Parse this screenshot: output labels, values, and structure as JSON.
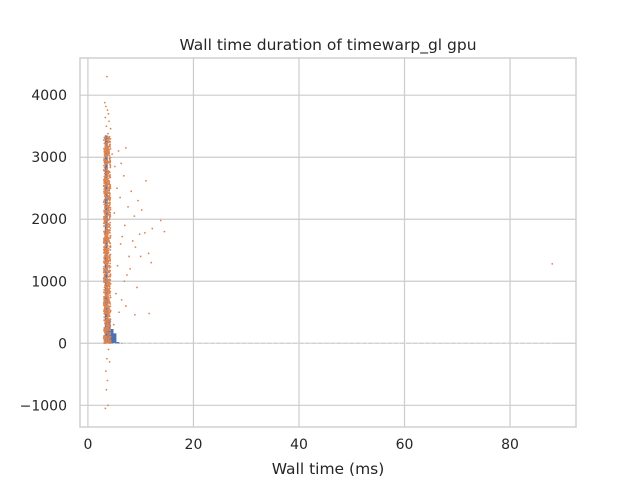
{
  "chart_data": {
    "type": "scatter",
    "title": "Wall time duration of timewarp_gl gpu",
    "xlabel": "Wall time (ms)",
    "ylabel": "",
    "xlim": [
      -1.5,
      92.5
    ],
    "ylim": [
      -1350,
      4600
    ],
    "xticks": [
      0,
      20,
      40,
      60,
      80
    ],
    "yticks": [
      -1000,
      0,
      1000,
      2000,
      3000,
      4000
    ],
    "xtick_labels": [
      "0",
      "20",
      "40",
      "60",
      "80"
    ],
    "ytick_labels": [
      "−1000",
      "0",
      "1000",
      "2000",
      "3000",
      "4000"
    ],
    "grid": true,
    "colors": {
      "histogram": "#4c72b0",
      "scatter": "#dd8452"
    },
    "histogram": {
      "bin_width": 0.55,
      "bins": [
        {
          "x": 3.2,
          "count": 3350
        },
        {
          "x": 3.75,
          "count": 380
        },
        {
          "x": 4.3,
          "count": 230
        },
        {
          "x": 4.85,
          "count": 160
        },
        {
          "x": 5.4,
          "count": 20
        },
        {
          "x": 6.0,
          "count": 6
        }
      ]
    },
    "points": [
      [
        3.6,
        4300
      ],
      [
        3.2,
        3880
      ],
      [
        3.4,
        3820
      ],
      [
        3.7,
        3760
      ],
      [
        3.9,
        3700
      ],
      [
        3.3,
        3640
      ],
      [
        4.0,
        3580
      ],
      [
        3.5,
        3500
      ],
      [
        4.3,
        3460
      ],
      [
        3.8,
        3380
      ],
      [
        7.2,
        3150
      ],
      [
        5.8,
        3100
      ],
      [
        4.6,
        3050
      ],
      [
        6.3,
        2900
      ],
      [
        5.1,
        2850
      ],
      [
        6.8,
        2700
      ],
      [
        11.0,
        2620
      ],
      [
        5.5,
        2500
      ],
      [
        8.2,
        2450
      ],
      [
        6.1,
        2350
      ],
      [
        9.5,
        2300
      ],
      [
        7.6,
        2200
      ],
      [
        10.2,
        2150
      ],
      [
        5.0,
        2100
      ],
      [
        8.8,
        2050
      ],
      [
        13.8,
        1980
      ],
      [
        7.0,
        1900
      ],
      [
        12.2,
        1850
      ],
      [
        14.5,
        1800
      ],
      [
        9.8,
        1760
      ],
      [
        10.8,
        1780
      ],
      [
        6.5,
        1720
      ],
      [
        8.5,
        1650
      ],
      [
        11.5,
        1450
      ],
      [
        9.0,
        1550
      ],
      [
        12.0,
        1300
      ],
      [
        6.2,
        1600
      ],
      [
        7.8,
        1400
      ],
      [
        8.0,
        1200
      ],
      [
        10.0,
        1400
      ],
      [
        5.6,
        1250
      ],
      [
        7.4,
        1100
      ],
      [
        9.3,
        900
      ],
      [
        6.9,
        1000
      ],
      [
        5.3,
        800
      ],
      [
        11.6,
        480
      ],
      [
        8.9,
        460
      ],
      [
        6.4,
        700
      ],
      [
        7.2,
        600
      ],
      [
        5.9,
        500
      ],
      [
        4.9,
        300
      ],
      [
        4.2,
        150
      ],
      [
        3.9,
        -100
      ],
      [
        3.6,
        -250
      ],
      [
        3.4,
        -450
      ],
      [
        3.5,
        -750
      ],
      [
        3.8,
        -1000
      ],
      [
        3.3,
        -1050
      ],
      [
        4.1,
        -300
      ],
      [
        3.7,
        -600
      ],
      [
        88.0,
        1280
      ]
    ],
    "dense_band": {
      "x_min": 3.0,
      "x_max": 4.3,
      "y_min": 0,
      "y_max": 3350
    },
    "rug": {
      "x_min": 5,
      "x_max": 88,
      "y": 0
    }
  }
}
